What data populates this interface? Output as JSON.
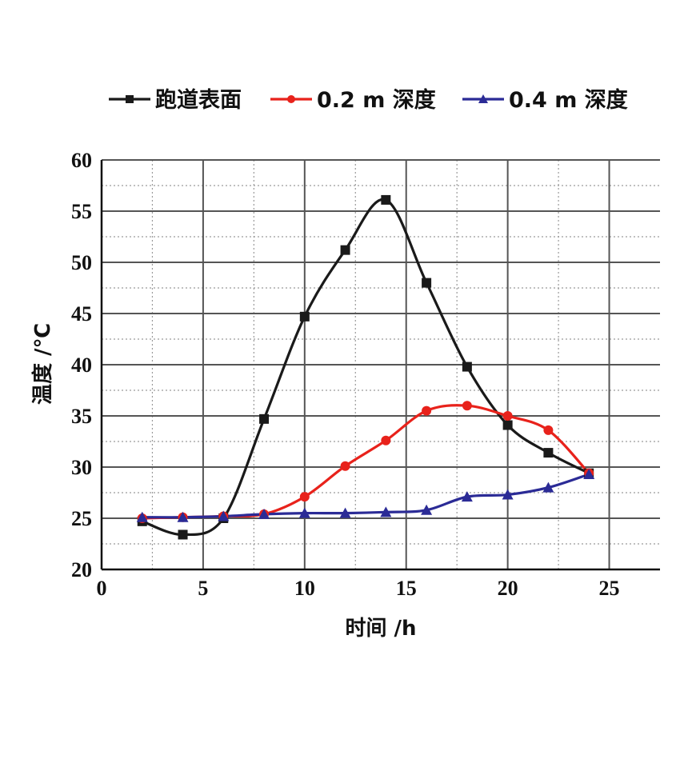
{
  "chart_data": {
    "type": "line",
    "xlabel": "时间 /h",
    "ylabel": "温度 /℃",
    "xlim": [
      0,
      27.5
    ],
    "ylim": [
      20,
      60
    ],
    "xticks": [
      0,
      5,
      10,
      15,
      20,
      25
    ],
    "yticks": [
      20,
      25,
      30,
      35,
      40,
      45,
      50,
      55,
      60
    ],
    "grid": true,
    "minor_grid": true,
    "legend_position": "top",
    "series": [
      {
        "name": "跑道表面",
        "color": "#1a1a1a",
        "marker": "square",
        "x": [
          2,
          4,
          6,
          8,
          10,
          12,
          14,
          16,
          18,
          20,
          22,
          24
        ],
        "y": [
          24.7,
          23.4,
          25.0,
          34.7,
          44.7,
          51.2,
          56.1,
          48.0,
          39.8,
          34.1,
          31.4,
          29.4
        ]
      },
      {
        "name": "0.2 m 深度",
        "color": "#e8221b",
        "marker": "diamond",
        "x": [
          2,
          4,
          6,
          8,
          10,
          12,
          14,
          16,
          18,
          20,
          22,
          24
        ],
        "y": [
          25.0,
          25.1,
          25.2,
          25.4,
          27.1,
          30.1,
          32.6,
          35.5,
          36.0,
          35.0,
          33.6,
          29.4
        ]
      },
      {
        "name": "0.4 m 深度",
        "color": "#2b2b96",
        "marker": "triangle",
        "x": [
          2,
          4,
          6,
          8,
          10,
          12,
          14,
          16,
          18,
          20,
          22,
          24
        ],
        "y": [
          25.1,
          25.1,
          25.2,
          25.4,
          25.5,
          25.5,
          25.6,
          25.8,
          27.1,
          27.3,
          28.0,
          29.3
        ]
      }
    ]
  }
}
